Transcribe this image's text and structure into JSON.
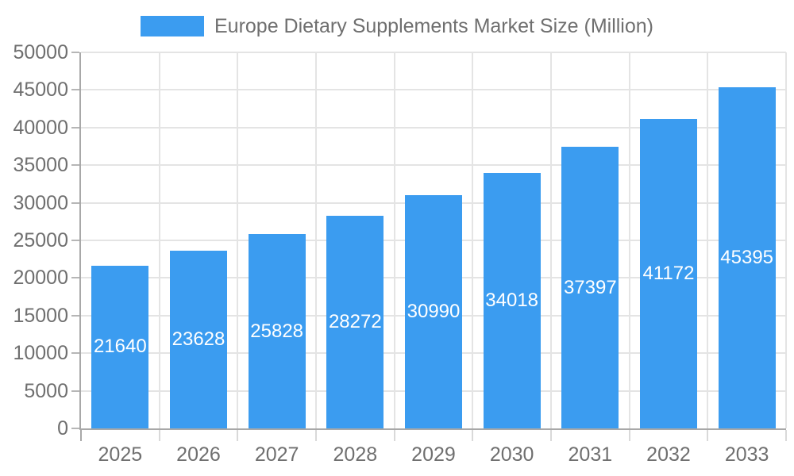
{
  "chart_data": {
    "type": "bar",
    "title": "Europe Dietary Supplements Market Size (Million)",
    "legend": {
      "label": "Europe Dietary Supplements Market Size (Million)",
      "position": "top"
    },
    "categories": [
      "2025",
      "2026",
      "2027",
      "2028",
      "2029",
      "2030",
      "2031",
      "2032",
      "2033"
    ],
    "values": [
      21640,
      23628,
      25828,
      28272,
      30990,
      34018,
      37397,
      41172,
      45395
    ],
    "xlabel": "",
    "ylabel": "",
    "ylim": [
      0,
      50000
    ],
    "ytick_step": 5000,
    "grid": true,
    "value_labels": "inside-center",
    "colors": {
      "bar": "#3b9cf0",
      "value_label": "#ffffff",
      "axis_text": "#6f6f6f",
      "gridline": "#e4e4e4",
      "axis_line": "#a8a8a8",
      "tick_mark": "#d9d9d9",
      "y_tick_dash": "#b6b6b6",
      "background": "#ffffff"
    }
  }
}
